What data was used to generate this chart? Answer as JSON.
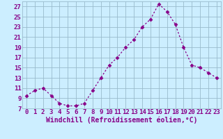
{
  "x": [
    0,
    1,
    2,
    3,
    4,
    5,
    6,
    7,
    8,
    9,
    10,
    11,
    12,
    13,
    14,
    15,
    16,
    17,
    18,
    19,
    20,
    21,
    22,
    23
  ],
  "y": [
    9.5,
    10.5,
    11,
    9.5,
    8,
    7.5,
    7.5,
    8,
    10.5,
    13,
    15.5,
    17,
    19,
    20.5,
    23,
    24.5,
    27.5,
    26,
    23.5,
    19,
    15.5,
    15,
    14,
    13
  ],
  "line_color": "#880088",
  "marker": "D",
  "marker_size": 2.5,
  "bg_color": "#cceeff",
  "grid_color": "#99bbcc",
  "xlabel": "Windchill (Refroidissement éolien,°C)",
  "xlabel_fontsize": 7,
  "ylabel_ticks": [
    7,
    9,
    11,
    13,
    15,
    17,
    19,
    21,
    23,
    25,
    27
  ],
  "ylim": [
    7,
    28
  ],
  "xlim": [
    -0.5,
    23.5
  ],
  "tick_fontsize": 6.5
}
